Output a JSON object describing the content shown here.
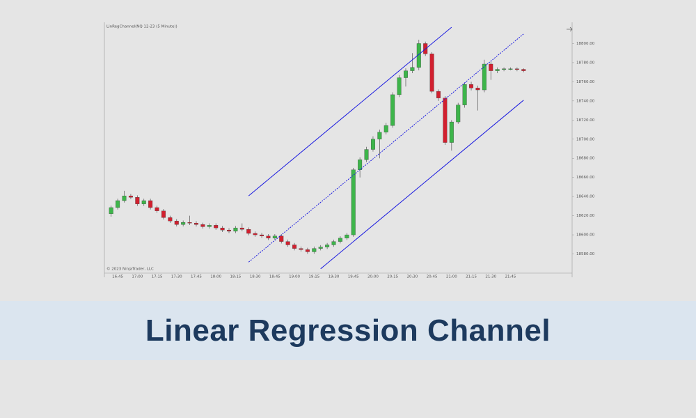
{
  "chart_data": {
    "type": "candlestick",
    "header": "LinRegChannel(NQ 12-23 (5 Minute))",
    "watermark": "© 2023 NinjaTrader, LLC",
    "up_color": "#3db54a",
    "down_color": "#d1202f",
    "wick_color": "#555555",
    "channel_color": "#1c1ce0",
    "categories": [
      null,
      "16:45",
      null,
      null,
      "17:00",
      null,
      null,
      "17:15",
      null,
      null,
      "17:30",
      null,
      null,
      "17:45",
      null,
      null,
      "18:00",
      null,
      null,
      "18:15",
      null,
      null,
      "18:30",
      null,
      null,
      "18:45",
      null,
      null,
      "19:00",
      null,
      null,
      "19:15",
      null,
      null,
      "19:30",
      null,
      null,
      "19:45",
      null,
      null,
      "20:00",
      null,
      null,
      "20:15",
      null,
      null,
      "20:30",
      null,
      null,
      "20:45",
      null,
      null,
      "21:00",
      null,
      null,
      "21:15",
      null,
      null,
      "21:30",
      null,
      null,
      "21:45",
      null,
      null
    ],
    "open": [
      18622,
      18628.5,
      18635.75,
      18640.75,
      18639.25,
      18632.25,
      18635.75,
      18628.5,
      18625,
      18618,
      18614.5,
      18610.75,
      18613,
      18612.25,
      18610.75,
      18608.5,
      18610,
      18607.25,
      18605,
      18603.75,
      18607.25,
      18605.75,
      18601.5,
      18600,
      18598.75,
      18596.5,
      18598.75,
      18593,
      18589.5,
      18585.75,
      18584.5,
      18582.25,
      18585.75,
      18587.25,
      18589.5,
      18593,
      18596.5,
      18600,
      18668,
      18678.5,
      18689.25,
      18700,
      18707.25,
      18714.25,
      18746.5,
      18764.25,
      18771.5,
      18775,
      18800,
      18789.25,
      18750,
      18743,
      18696.5,
      18718,
      18735.75,
      18757.25,
      18753.5,
      18751.5,
      18778.5,
      18771.5,
      18773,
      18773.5,
      18773.5,
      18773
    ],
    "high": [
      18630.5,
      18637.75,
      18646,
      18642.75,
      18641.25,
      18637.75,
      18637.75,
      18630.5,
      18627,
      18620,
      18616.5,
      18615,
      18620,
      18614.25,
      18612.75,
      18612,
      18612,
      18609.25,
      18607,
      18609.25,
      18612,
      18607.75,
      18603.5,
      18602,
      18600.75,
      18600.75,
      18600.75,
      18595,
      18591.5,
      18587.75,
      18586.5,
      18587.75,
      18589.25,
      18591.5,
      18595,
      18598.5,
      18602,
      18670,
      18681,
      18692,
      18703,
      18710,
      18717,
      18749,
      18767,
      18774,
      18790,
      18804,
      18802,
      18791,
      18752,
      18745,
      18720,
      18738,
      18759,
      18760,
      18756,
      18783,
      18781,
      18775,
      18775,
      18775,
      18775,
      18774
    ],
    "low": [
      18619,
      18626.5,
      18633.75,
      18637.25,
      18630.25,
      18630.25,
      18626.5,
      18623,
      18616,
      18612.5,
      18608.75,
      18608.75,
      18610.25,
      18608.75,
      18606.5,
      18606.5,
      18605.25,
      18603,
      18601.75,
      18601.75,
      18603.75,
      18599.5,
      18598,
      18596.75,
      18594.5,
      18594.5,
      18591,
      18587.5,
      18583.75,
      18582.5,
      18580.25,
      18580.25,
      18583.75,
      18585.25,
      18587.5,
      18591,
      18594.5,
      18598,
      18660,
      18676,
      18687,
      18680,
      18705,
      18712,
      18744,
      18755,
      18769,
      18772,
      18787,
      18748,
      18740,
      18694,
      18688,
      18716,
      18733,
      18751,
      18730,
      18749,
      18762,
      18769,
      18771,
      18772,
      18771,
      18770
    ],
    "close": [
      18628.5,
      18635.75,
      18640.75,
      18639.25,
      18632.25,
      18635.75,
      18628.5,
      18625,
      18618,
      18614.5,
      18610.75,
      18613,
      18612.25,
      18610.75,
      18608.5,
      18610,
      18607.25,
      18605,
      18603.75,
      18607.25,
      18605.75,
      18601.5,
      18600,
      18598.75,
      18596.5,
      18598.75,
      18593,
      18589.5,
      18585.75,
      18584.5,
      18582.25,
      18585.75,
      18587.25,
      18589.5,
      18593,
      18596.5,
      18600,
      18668,
      18678.5,
      18689.25,
      18700,
      18707.25,
      18714.25,
      18746.5,
      18764.25,
      18771.5,
      18775,
      18800,
      18789.25,
      18750,
      18743,
      18696.5,
      18718,
      18735.75,
      18757.25,
      18753.5,
      18751.5,
      18778.5,
      18771.5,
      18773,
      18773.5,
      18773.5,
      18773,
      18771.5
    ],
    "channel": {
      "upper": {
        "x": [
          21,
          52
        ],
        "y": [
          18640.75,
          18817
        ]
      },
      "middle": {
        "x": [
          21,
          63
        ],
        "y": [
          18571.5,
          18810
        ]
      },
      "lower": {
        "x": [
          32,
          63
        ],
        "y": [
          18564.5,
          18740.75
        ]
      }
    },
    "ylim": [
      18560,
      18820
    ],
    "yticks": [
      {
        "value": 18580,
        "label": "18580.00"
      },
      {
        "value": 18600,
        "label": "18600.00"
      },
      {
        "value": 18620,
        "label": "18620.00"
      },
      {
        "value": 18640,
        "label": "18640.00"
      },
      {
        "value": 18660,
        "label": "18660.00"
      },
      {
        "value": 18680,
        "label": "18680.00"
      },
      {
        "value": 18700,
        "label": "18700.00"
      },
      {
        "value": 18720,
        "label": "18720.00"
      },
      {
        "value": 18740,
        "label": "18740.00"
      },
      {
        "value": 18760,
        "label": "18760.00"
      },
      {
        "value": 18780,
        "label": "18780.00"
      },
      {
        "value": 18800,
        "label": "18800.00"
      }
    ]
  },
  "banner": {
    "title": "Linear Regression Channel"
  }
}
